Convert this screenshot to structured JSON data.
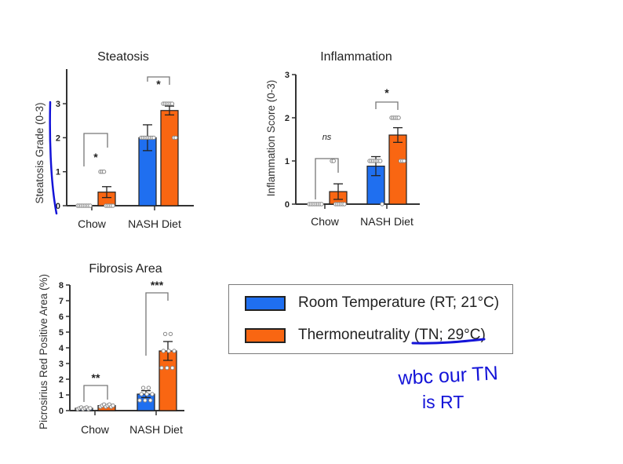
{
  "colors": {
    "rt": "#1f6ff0",
    "tn": "#f96612",
    "axis": "#333333",
    "annotation": "#1414d8"
  },
  "legend": {
    "items": [
      {
        "label": "Room Temperature (RT; 21°C)",
        "color": "#1f6ff0"
      },
      {
        "label": "Thermoneutrality (TN; 29°C)",
        "color": "#f96612"
      }
    ]
  },
  "annotation": {
    "handwritten_line1": "wbc our TN",
    "handwritten_line2": "is RT",
    "underline_target": "TN; 29°C"
  },
  "chart_data": [
    {
      "type": "bar",
      "title": "Steatosis",
      "xlabel": "",
      "ylabel": "Steatosis Grade (0-3)",
      "ylim": [
        0,
        3
      ],
      "yticks": [
        0,
        1,
        2,
        3
      ],
      "categories": [
        "Chow",
        "NASH Diet"
      ],
      "series": [
        {
          "name": "Room Temperature (RT; 21°C)",
          "values": [
            0.0,
            2.0
          ],
          "sem": [
            0.0,
            0.38
          ]
        },
        {
          "name": "Thermoneutrality (TN; 29°C)",
          "values": [
            0.4,
            2.8
          ],
          "sem": [
            0.16,
            0.13
          ]
        }
      ],
      "significance": [
        "*",
        "*"
      ],
      "grid": false,
      "legend_position": "separate box"
    },
    {
      "type": "bar",
      "title": "Inflammation",
      "xlabel": "",
      "ylabel": "Inflammation Score (0-3)",
      "ylim": [
        0,
        3
      ],
      "yticks": [
        0,
        1,
        2,
        3
      ],
      "categories": [
        "Chow",
        "NASH Diet"
      ],
      "series": [
        {
          "name": "Room Temperature (RT; 21°C)",
          "values": [
            0.0,
            0.88
          ],
          "sem": [
            0.0,
            0.22
          ]
        },
        {
          "name": "Thermoneutrality (TN; 29°C)",
          "values": [
            0.29,
            1.6
          ],
          "sem": [
            0.18,
            0.17
          ]
        }
      ],
      "significance": [
        "ns",
        "*"
      ],
      "grid": false,
      "legend_position": "separate box"
    },
    {
      "type": "bar",
      "title": "Fibrosis Area",
      "xlabel": "",
      "ylabel": "Picrosirius Red Positive Area (%)",
      "ylim": [
        0,
        8
      ],
      "yticks": [
        0,
        1,
        2,
        3,
        4,
        5,
        6,
        7,
        8
      ],
      "categories": [
        "Chow",
        "NASH Diet"
      ],
      "series": [
        {
          "name": "Room Temperature (RT; 21°C)",
          "values": [
            0.15,
            1.05
          ],
          "sem": [
            0.03,
            0.22
          ]
        },
        {
          "name": "Thermoneutrality (TN; 29°C)",
          "values": [
            0.32,
            3.8
          ],
          "sem": [
            0.04,
            0.6
          ]
        }
      ],
      "significance": [
        "**",
        "***"
      ],
      "grid": false,
      "legend_position": "separate box"
    }
  ]
}
